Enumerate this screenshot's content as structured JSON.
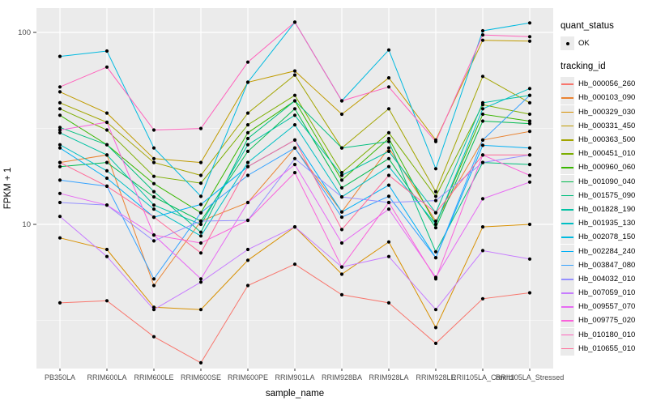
{
  "axes": {
    "x_title": "sample_name",
    "y_title": "FPKM + 1",
    "y_tick_labels": [
      "100",
      "10"
    ]
  },
  "legend": {
    "quant_status": {
      "title": "quant_status",
      "ok_label": "OK"
    },
    "tracking_id": {
      "title": "tracking_id"
    }
  },
  "style": {
    "panel_bg": "#ebebeb",
    "grid_color": "#ffffff",
    "tick_text_color": "#4d4d4d",
    "point_color": "#000000"
  },
  "chart_data": {
    "type": "line",
    "title": "",
    "xlabel": "sample_name",
    "ylabel": "FPKM + 1",
    "y_scale": "log10",
    "y_major_ticks": [
      100,
      10
    ],
    "y_minor_gridlines": [
      31.62,
      3.162
    ],
    "ylim": [
      1.7,
      135
    ],
    "grid": true,
    "legend_position": "right",
    "point_marker": "black dot (quant_status = OK)",
    "x_categories": [
      "PB350LA",
      "RRIM600LA",
      "RRIM600LE",
      "RRIM600SE",
      "RRIM600PE",
      "RRIM901LA",
      "RRIM928BA",
      "RRIM928LA",
      "RRIM928LE",
      "RRII105LA_Control",
      "RRII105LA_Stressed"
    ],
    "series": [
      {
        "name": "Hb_000056_260",
        "color": "#F8766D",
        "values": [
          3.9,
          4.0,
          2.6,
          1.9,
          4.8,
          6.2,
          4.3,
          3.9,
          2.4,
          4.1,
          4.4
        ]
      },
      {
        "name": "Hb_000103_090",
        "color": "#EA8331",
        "values": [
          21,
          23,
          4.8,
          10.4,
          13,
          25,
          11.6,
          25,
          10.4,
          27.5,
          30.5
        ]
      },
      {
        "name": "Hb_000329_030",
        "color": "#D89000",
        "values": [
          8.5,
          7.4,
          3.7,
          3.6,
          6.5,
          9.7,
          5.5,
          8.1,
          2.9,
          9.7,
          10
        ]
      },
      {
        "name": "Hb_000331_450",
        "color": "#C09B00",
        "values": [
          49,
          38,
          22,
          21,
          55,
          63,
          37.5,
          58,
          27.5,
          91,
          90
        ]
      },
      {
        "name": "Hb_000363_500",
        "color": "#A3A500",
        "values": [
          43,
          34,
          21,
          18,
          38,
          60,
          25,
          40,
          14.8,
          59,
          43
        ]
      },
      {
        "name": "Hb_000451_010",
        "color": "#7CAE00",
        "values": [
          40,
          31,
          17.8,
          16.4,
          33,
          47,
          18.6,
          30,
          14,
          42,
          37.5
        ]
      },
      {
        "name": "Hb_000960_060",
        "color": "#39B600",
        "values": [
          37,
          26,
          16.3,
          11.5,
          30,
          44,
          17,
          28,
          10,
          37.5,
          34.5
        ]
      },
      {
        "name": "Hb_001090_040",
        "color": "#00BB4E",
        "values": [
          20,
          21,
          13.9,
          10.4,
          24,
          40,
          15.5,
          22,
          9.6,
          34.5,
          33.5
        ]
      },
      {
        "name": "Hb_001575_090",
        "color": "#00BF7D",
        "values": [
          32,
          26,
          14.8,
          9.1,
          28,
          44,
          25,
          27,
          7.2,
          21,
          20.5
        ]
      },
      {
        "name": "Hb_001828_190",
        "color": "#00C1A3",
        "values": [
          30,
          23,
          12.6,
          10,
          26,
          37,
          18,
          24,
          11.5,
          43,
          47
        ]
      },
      {
        "name": "Hb_001935_130",
        "color": "#00BFC4",
        "values": [
          26,
          19,
          12,
          8.7,
          21,
          33,
          13.9,
          20,
          10,
          40,
          51
        ]
      },
      {
        "name": "Hb_002078_150",
        "color": "#00BAE0",
        "values": [
          75,
          80,
          25,
          14,
          55,
          113,
          44,
          81,
          19.5,
          102,
          112
        ]
      },
      {
        "name": "Hb_002284_240",
        "color": "#00B0F6",
        "values": [
          25,
          17.4,
          10.9,
          12.7,
          20,
          27.5,
          11.6,
          16,
          6.7,
          25.8,
          25
        ]
      },
      {
        "name": "Hb_003847_080",
        "color": "#35A2FF",
        "values": [
          17,
          15.8,
          5.2,
          11.5,
          18,
          25,
          10.9,
          14,
          6.7,
          27.5,
          47
        ]
      },
      {
        "name": "Hb_004032_010",
        "color": "#9590FF",
        "values": [
          13,
          12.6,
          8.2,
          10.4,
          10.5,
          22,
          13.9,
          13,
          13.3,
          21,
          23
        ]
      },
      {
        "name": "Hb_007059_010",
        "color": "#C77CFF",
        "values": [
          11,
          6.8,
          3.6,
          5.0,
          7.4,
          9.7,
          6.0,
          6.8,
          3.6,
          7.3,
          6.6
        ]
      },
      {
        "name": "Hb_009557_070",
        "color": "#E76BF3",
        "values": [
          14.5,
          12.6,
          8.8,
          5.2,
          13,
          20.5,
          8.0,
          12,
          5.3,
          13.6,
          16.6
        ]
      },
      {
        "name": "Hb_009775_020",
        "color": "#FA62DB",
        "values": [
          31,
          34,
          8.8,
          8.0,
          10.5,
          18.6,
          6.0,
          13,
          5.2,
          23,
          18
        ]
      },
      {
        "name": "Hb_010180_010",
        "color": "#FF62BC",
        "values": [
          52,
          66,
          31,
          31.6,
          70,
          113,
          44,
          52,
          27,
          97,
          95
        ]
      },
      {
        "name": "Hb_010655_010",
        "color": "#FF6A98",
        "values": [
          21,
          15.8,
          10.9,
          7.1,
          20,
          27.5,
          9.4,
          18,
          11.5,
          23,
          23
        ]
      }
    ]
  }
}
